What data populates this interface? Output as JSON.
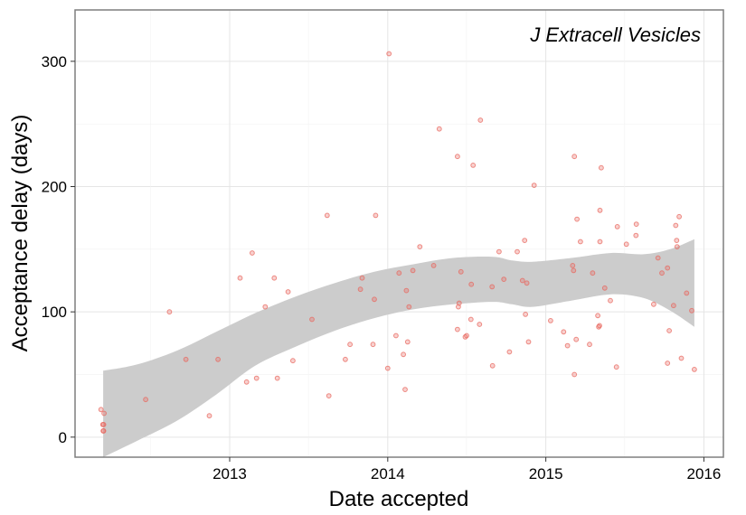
{
  "chart_data": {
    "type": "scatter",
    "title": "",
    "annotation": "J Extracell Vesicles",
    "xlabel": "Date accepted",
    "ylabel": "Acceptance delay (days)",
    "x_ticks": [
      "2013",
      "2014",
      "2015",
      "2016"
    ],
    "y_ticks": [
      0,
      100,
      200,
      300
    ],
    "xlim": [
      "2012-01-10",
      "2016-02-15"
    ],
    "ylim": [
      -16,
      341
    ],
    "grid": true,
    "legend": "none",
    "point_color": "#e8685f",
    "band_color": "#cccccc",
    "points": [
      {
        "x": "2012-03-10",
        "y": 22
      },
      {
        "x": "2012-03-14",
        "y": 10
      },
      {
        "x": "2012-03-15",
        "y": 5
      },
      {
        "x": "2012-03-16",
        "y": 10
      },
      {
        "x": "2012-03-16",
        "y": 5
      },
      {
        "x": "2012-03-17",
        "y": 19
      },
      {
        "x": "2012-06-21",
        "y": 30
      },
      {
        "x": "2012-08-15",
        "y": 100
      },
      {
        "x": "2012-09-22",
        "y": 62
      },
      {
        "x": "2012-11-15",
        "y": 17
      },
      {
        "x": "2012-12-05",
        "y": 62
      },
      {
        "x": "2013-01-25",
        "y": 127
      },
      {
        "x": "2013-02-09",
        "y": 44
      },
      {
        "x": "2013-02-22",
        "y": 147
      },
      {
        "x": "2013-03-04",
        "y": 47
      },
      {
        "x": "2013-03-24",
        "y": 104
      },
      {
        "x": "2013-04-14",
        "y": 127
      },
      {
        "x": "2013-04-21",
        "y": 47
      },
      {
        "x": "2013-05-16",
        "y": 116
      },
      {
        "x": "2013-05-27",
        "y": 61
      },
      {
        "x": "2013-07-10",
        "y": 94
      },
      {
        "x": "2013-08-14",
        "y": 177
      },
      {
        "x": "2013-08-18",
        "y": 33
      },
      {
        "x": "2013-09-25",
        "y": 62
      },
      {
        "x": "2013-10-06",
        "y": 74
      },
      {
        "x": "2013-10-30",
        "y": 118
      },
      {
        "x": "2013-11-03",
        "y": 127
      },
      {
        "x": "2013-11-28",
        "y": 74
      },
      {
        "x": "2013-12-01",
        "y": 110
      },
      {
        "x": "2013-12-04",
        "y": 177
      },
      {
        "x": "2014-01-01",
        "y": 55
      },
      {
        "x": "2014-01-04",
        "y": 306
      },
      {
        "x": "2014-01-20",
        "y": 81
      },
      {
        "x": "2014-01-27",
        "y": 131
      },
      {
        "x": "2014-02-06",
        "y": 66
      },
      {
        "x": "2014-02-10",
        "y": 38
      },
      {
        "x": "2014-02-13",
        "y": 117
      },
      {
        "x": "2014-02-16",
        "y": 76
      },
      {
        "x": "2014-02-19",
        "y": 104
      },
      {
        "x": "2014-02-28",
        "y": 133
      },
      {
        "x": "2014-03-16",
        "y": 152
      },
      {
        "x": "2014-04-17",
        "y": 137
      },
      {
        "x": "2014-04-30",
        "y": 246
      },
      {
        "x": "2014-06-11",
        "y": 224
      },
      {
        "x": "2014-06-11",
        "y": 86
      },
      {
        "x": "2014-06-13",
        "y": 104
      },
      {
        "x": "2014-06-15",
        "y": 107
      },
      {
        "x": "2014-06-19",
        "y": 132
      },
      {
        "x": "2014-06-29",
        "y": 80
      },
      {
        "x": "2014-07-02",
        "y": 81
      },
      {
        "x": "2014-07-12",
        "y": 94
      },
      {
        "x": "2014-07-13",
        "y": 122
      },
      {
        "x": "2014-07-17",
        "y": 217
      },
      {
        "x": "2014-08-01",
        "y": 90
      },
      {
        "x": "2014-08-03",
        "y": 253
      },
      {
        "x": "2014-08-30",
        "y": 120
      },
      {
        "x": "2014-08-31",
        "y": 57
      },
      {
        "x": "2014-09-15",
        "y": 148
      },
      {
        "x": "2014-09-26",
        "y": 126
      },
      {
        "x": "2014-10-09",
        "y": 68
      },
      {
        "x": "2014-10-27",
        "y": 148
      },
      {
        "x": "2014-11-08",
        "y": 125
      },
      {
        "x": "2014-11-13",
        "y": 157
      },
      {
        "x": "2014-11-15",
        "y": 98
      },
      {
        "x": "2014-11-18",
        "y": 123
      },
      {
        "x": "2014-11-22",
        "y": 76
      },
      {
        "x": "2014-12-05",
        "y": 201
      },
      {
        "x": "2015-01-12",
        "y": 93
      },
      {
        "x": "2015-02-11",
        "y": 84
      },
      {
        "x": "2015-02-20",
        "y": 73
      },
      {
        "x": "2015-03-04",
        "y": 137
      },
      {
        "x": "2015-03-06",
        "y": 133
      },
      {
        "x": "2015-03-08",
        "y": 50
      },
      {
        "x": "2015-03-08",
        "y": 224
      },
      {
        "x": "2015-03-12",
        "y": 78
      },
      {
        "x": "2015-03-14",
        "y": 174
      },
      {
        "x": "2015-03-22",
        "y": 156
      },
      {
        "x": "2015-04-12",
        "y": 74
      },
      {
        "x": "2015-04-19",
        "y": 131
      },
      {
        "x": "2015-05-01",
        "y": 97
      },
      {
        "x": "2015-05-03",
        "y": 88
      },
      {
        "x": "2015-05-05",
        "y": 89
      },
      {
        "x": "2015-05-06",
        "y": 181
      },
      {
        "x": "2015-05-06",
        "y": 156
      },
      {
        "x": "2015-05-09",
        "y": 215
      },
      {
        "x": "2015-05-17",
        "y": 119
      },
      {
        "x": "2015-05-30",
        "y": 109
      },
      {
        "x": "2015-06-13",
        "y": 56
      },
      {
        "x": "2015-06-15",
        "y": 168
      },
      {
        "x": "2015-07-06",
        "y": 154
      },
      {
        "x": "2015-07-28",
        "y": 161
      },
      {
        "x": "2015-07-29",
        "y": 170
      },
      {
        "x": "2015-09-07",
        "y": 106
      },
      {
        "x": "2015-09-17",
        "y": 143
      },
      {
        "x": "2015-09-26",
        "y": 131
      },
      {
        "x": "2015-10-09",
        "y": 135
      },
      {
        "x": "2015-10-09",
        "y": 59
      },
      {
        "x": "2015-10-13",
        "y": 85
      },
      {
        "x": "2015-10-23",
        "y": 105
      },
      {
        "x": "2015-10-28",
        "y": 169
      },
      {
        "x": "2015-10-30",
        "y": 157
      },
      {
        "x": "2015-10-31",
        "y": 152
      },
      {
        "x": "2015-11-05",
        "y": 176
      },
      {
        "x": "2015-11-10",
        "y": 63
      },
      {
        "x": "2015-11-22",
        "y": 115
      },
      {
        "x": "2015-12-04",
        "y": 101
      },
      {
        "x": "2015-12-10",
        "y": 54
      }
    ],
    "smooth_band": [
      {
        "x": "2012-03-15",
        "lower": -16,
        "upper": 53
      },
      {
        "x": "2012-06-01",
        "lower": -3,
        "upper": 58
      },
      {
        "x": "2012-09-01",
        "lower": 13,
        "upper": 69
      },
      {
        "x": "2012-12-01",
        "lower": 34,
        "upper": 84
      },
      {
        "x": "2013-03-01",
        "lower": 57,
        "upper": 99
      },
      {
        "x": "2013-06-01",
        "lower": 72,
        "upper": 112
      },
      {
        "x": "2013-09-01",
        "lower": 85,
        "upper": 123
      },
      {
        "x": "2013-12-01",
        "lower": 95,
        "upper": 132
      },
      {
        "x": "2014-03-01",
        "lower": 102,
        "upper": 138
      },
      {
        "x": "2014-06-01",
        "lower": 106,
        "upper": 143
      },
      {
        "x": "2014-09-01",
        "lower": 108,
        "upper": 144
      },
      {
        "x": "2014-10-15",
        "lower": 106,
        "upper": 141
      },
      {
        "x": "2014-12-01",
        "lower": 104,
        "upper": 140
      },
      {
        "x": "2015-03-01",
        "lower": 109,
        "upper": 143
      },
      {
        "x": "2015-06-01",
        "lower": 114,
        "upper": 147
      },
      {
        "x": "2015-08-15",
        "lower": 111,
        "upper": 146
      },
      {
        "x": "2015-10-15",
        "lower": 101,
        "upper": 150
      },
      {
        "x": "2015-12-10",
        "lower": 88,
        "upper": 158
      }
    ]
  }
}
